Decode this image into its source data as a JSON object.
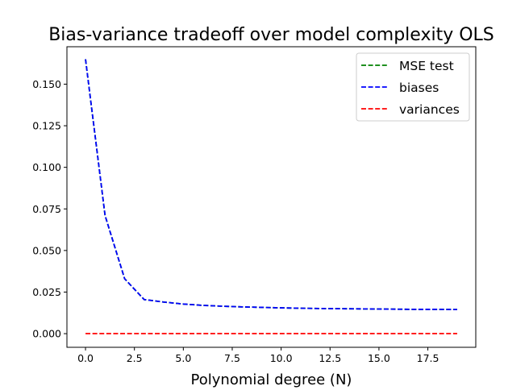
{
  "chart_data": {
    "type": "line",
    "title": "Bias-variance tradeoff over model complexity OLS",
    "xlabel": "Polynomial degree (N)",
    "ylabel": "",
    "xlim": [
      -0.95,
      19.95
    ],
    "ylim": [
      -0.0082,
      0.1725
    ],
    "xticks": [
      0.0,
      2.5,
      5.0,
      7.5,
      10.0,
      12.5,
      15.0,
      17.5
    ],
    "xtick_labels": [
      "0.0",
      "2.5",
      "5.0",
      "7.5",
      "10.0",
      "12.5",
      "15.0",
      "17.5"
    ],
    "yticks": [
      0.0,
      0.025,
      0.05,
      0.075,
      0.1,
      0.125,
      0.15
    ],
    "ytick_labels": [
      "0.000",
      "0.025",
      "0.050",
      "0.075",
      "0.100",
      "0.125",
      "0.150"
    ],
    "grid": false,
    "legend_position": "top-right",
    "x": [
      0,
      1,
      2,
      3,
      4,
      5,
      6,
      7,
      8,
      9,
      10,
      11,
      12,
      13,
      14,
      15,
      16,
      17,
      18,
      19
    ],
    "series": [
      {
        "name": "MSE test",
        "color": "#008000",
        "style": "dashed",
        "values": [
          0.165,
          0.071,
          0.033,
          0.0205,
          0.019,
          0.0178,
          0.017,
          0.0165,
          0.0161,
          0.0158,
          0.0155,
          0.0153,
          0.0151,
          0.015,
          0.0149,
          0.0148,
          0.0147,
          0.0146,
          0.0146,
          0.0145
        ]
      },
      {
        "name": "biases",
        "color": "#0000ff",
        "style": "dashed",
        "values": [
          0.165,
          0.071,
          0.033,
          0.0205,
          0.019,
          0.0178,
          0.017,
          0.0165,
          0.0161,
          0.0158,
          0.0155,
          0.0153,
          0.0151,
          0.015,
          0.0149,
          0.0148,
          0.0147,
          0.0146,
          0.0146,
          0.0145
        ]
      },
      {
        "name": "variances",
        "color": "#ff0000",
        "style": "dashed",
        "values": [
          5e-05,
          5e-05,
          5e-05,
          5e-05,
          5e-05,
          5e-05,
          5e-05,
          5e-05,
          5e-05,
          5e-05,
          5e-05,
          5e-05,
          5e-05,
          5e-05,
          5e-05,
          5e-05,
          5e-05,
          5e-05,
          5e-05,
          5e-05
        ]
      }
    ]
  }
}
